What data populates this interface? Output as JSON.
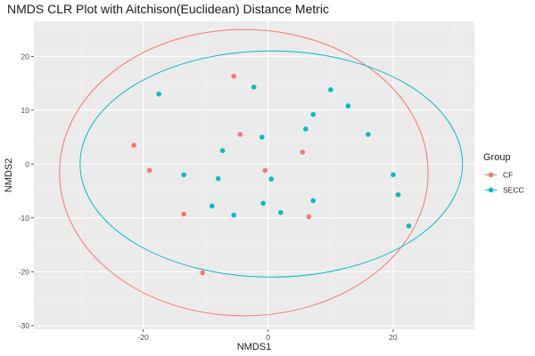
{
  "chart_data": {
    "type": "scatter",
    "title": "NMDS CLR Plot with Aitchison(Euclidean) Distance Metric",
    "xlabel": "NMDS1",
    "ylabel": "NMDS2",
    "xlim": [
      -37.5,
      33
    ],
    "ylim": [
      -30.7,
      26.5
    ],
    "xticks": [
      -20,
      0,
      20
    ],
    "yticks": [
      -30,
      -20,
      -10,
      0,
      10,
      20
    ],
    "grid": true,
    "legend": {
      "title": "Group",
      "position": "right"
    },
    "series": [
      {
        "name": "CF",
        "color": "#F8766D",
        "points": [
          {
            "x": -21.5,
            "y": 3.5
          },
          {
            "x": -19.0,
            "y": -1.2
          },
          {
            "x": -13.5,
            "y": -9.3
          },
          {
            "x": -10.5,
            "y": -20.2
          },
          {
            "x": -5.5,
            "y": 16.3
          },
          {
            "x": -4.5,
            "y": 5.5
          },
          {
            "x": -0.5,
            "y": -1.2
          },
          {
            "x": 5.5,
            "y": 2.2
          },
          {
            "x": 6.5,
            "y": -9.8
          }
        ],
        "ellipse": {
          "cx": -3.9,
          "cy": -1.6,
          "rx": 29.5,
          "ry": 26.6
        }
      },
      {
        "name": "SECC",
        "color": "#00BFC4",
        "points": [
          {
            "x": -17.5,
            "y": 13.0
          },
          {
            "x": -13.5,
            "y": -2.0
          },
          {
            "x": -9.0,
            "y": -7.8
          },
          {
            "x": -8.0,
            "y": -2.7
          },
          {
            "x": -7.3,
            "y": 2.5
          },
          {
            "x": -5.5,
            "y": -9.5
          },
          {
            "x": -2.3,
            "y": 14.3
          },
          {
            "x": -1.0,
            "y": 5.0
          },
          {
            "x": -0.8,
            "y": -7.3
          },
          {
            "x": 0.5,
            "y": -2.8
          },
          {
            "x": 2.0,
            "y": -9.0
          },
          {
            "x": 6.0,
            "y": 6.5
          },
          {
            "x": 7.2,
            "y": 9.2
          },
          {
            "x": 7.2,
            "y": -6.8
          },
          {
            "x": 10.0,
            "y": 13.8
          },
          {
            "x": 12.8,
            "y": 10.8
          },
          {
            "x": 16.0,
            "y": 5.5
          },
          {
            "x": 20.0,
            "y": -2.0
          },
          {
            "x": 20.8,
            "y": -5.7
          },
          {
            "x": 22.5,
            "y": -11.5
          }
        ],
        "ellipse": {
          "cx": 0.5,
          "cy": 0.0,
          "rx": 30.6,
          "ry": 21.0
        }
      }
    ]
  }
}
